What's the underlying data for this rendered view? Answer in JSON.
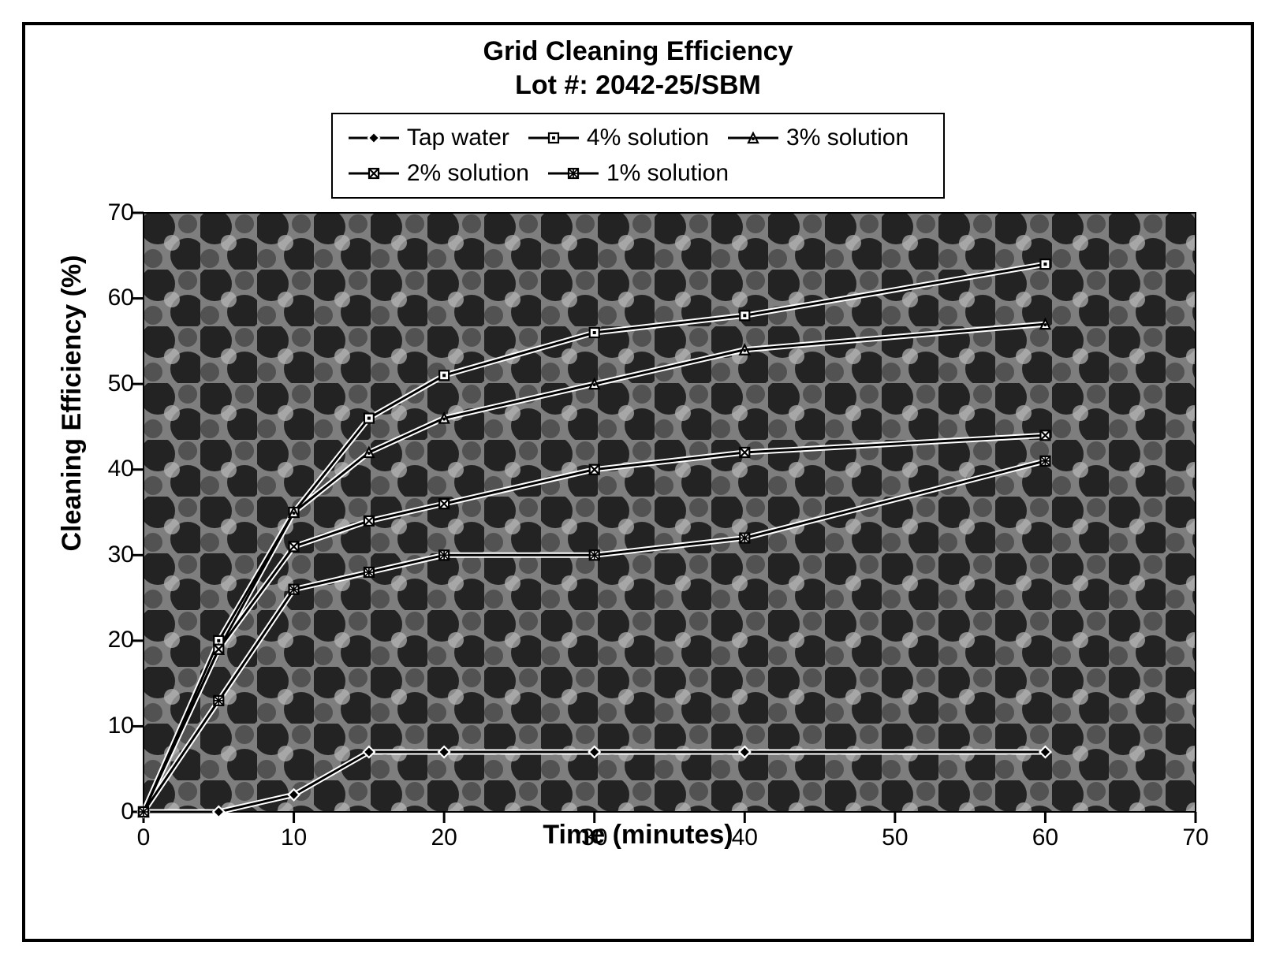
{
  "chart": {
    "type": "line",
    "title_line1": "Grid Cleaning Efficiency",
    "title_line2": "Lot #: 2042-25/SBM",
    "title_fontsize": 34,
    "xlabel": "Time (minutes)",
    "ylabel": "Cleaning Efficiency (%)",
    "axis_label_fontsize": 34,
    "tick_fontsize": 30,
    "xlim": [
      0,
      70
    ],
    "ylim": [
      0,
      70
    ],
    "xticks": [
      0,
      10,
      20,
      30,
      40,
      50,
      60,
      70
    ],
    "yticks": [
      0,
      10,
      20,
      30,
      40,
      50,
      60,
      70
    ],
    "plot_background_mode": "mottled",
    "plot_background_colors": [
      "#1a1a1a",
      "#4a4a4a",
      "#7e7e7e",
      "#b8b8b8"
    ],
    "plot_border_color": "#000000",
    "plot_border_width": 2,
    "line_width_outer": 7,
    "line_width_inner": 3,
    "line_outer_color": "#ffffff",
    "line_inner_color": "#000000",
    "marker_size": 16,
    "series": [
      {
        "name": "Tap water",
        "marker": "diamond",
        "x": [
          0,
          5,
          10,
          15,
          20,
          30,
          40,
          60
        ],
        "y": [
          0,
          0,
          2,
          7,
          7,
          7,
          7,
          7
        ]
      },
      {
        "name": "4% solution",
        "marker": "square",
        "x": [
          0,
          5,
          10,
          15,
          20,
          30,
          40,
          60
        ],
        "y": [
          0,
          20,
          35,
          46,
          51,
          56,
          58,
          64
        ]
      },
      {
        "name": "3% solution",
        "marker": "triangle",
        "x": [
          0,
          5,
          10,
          15,
          20,
          30,
          40,
          60
        ],
        "y": [
          0,
          19,
          35,
          42,
          46,
          50,
          54,
          57
        ]
      },
      {
        "name": "2% solution",
        "marker": "square-x",
        "x": [
          0,
          5,
          10,
          15,
          20,
          30,
          40,
          60
        ],
        "y": [
          0,
          19,
          31,
          34,
          36,
          40,
          42,
          44
        ]
      },
      {
        "name": "1% solution",
        "marker": "asterisk",
        "x": [
          0,
          5,
          10,
          15,
          20,
          30,
          40,
          60
        ],
        "y": [
          0,
          13,
          26,
          28,
          30,
          30,
          32,
          41
        ]
      }
    ],
    "legend_order": [
      0,
      1,
      2,
      3,
      4
    ],
    "legend_columns_row1": [
      0,
      1,
      2
    ],
    "legend_columns_row2": [
      3,
      4
    ],
    "legend_border_width": 2,
    "legend_fontsize": 30
  }
}
